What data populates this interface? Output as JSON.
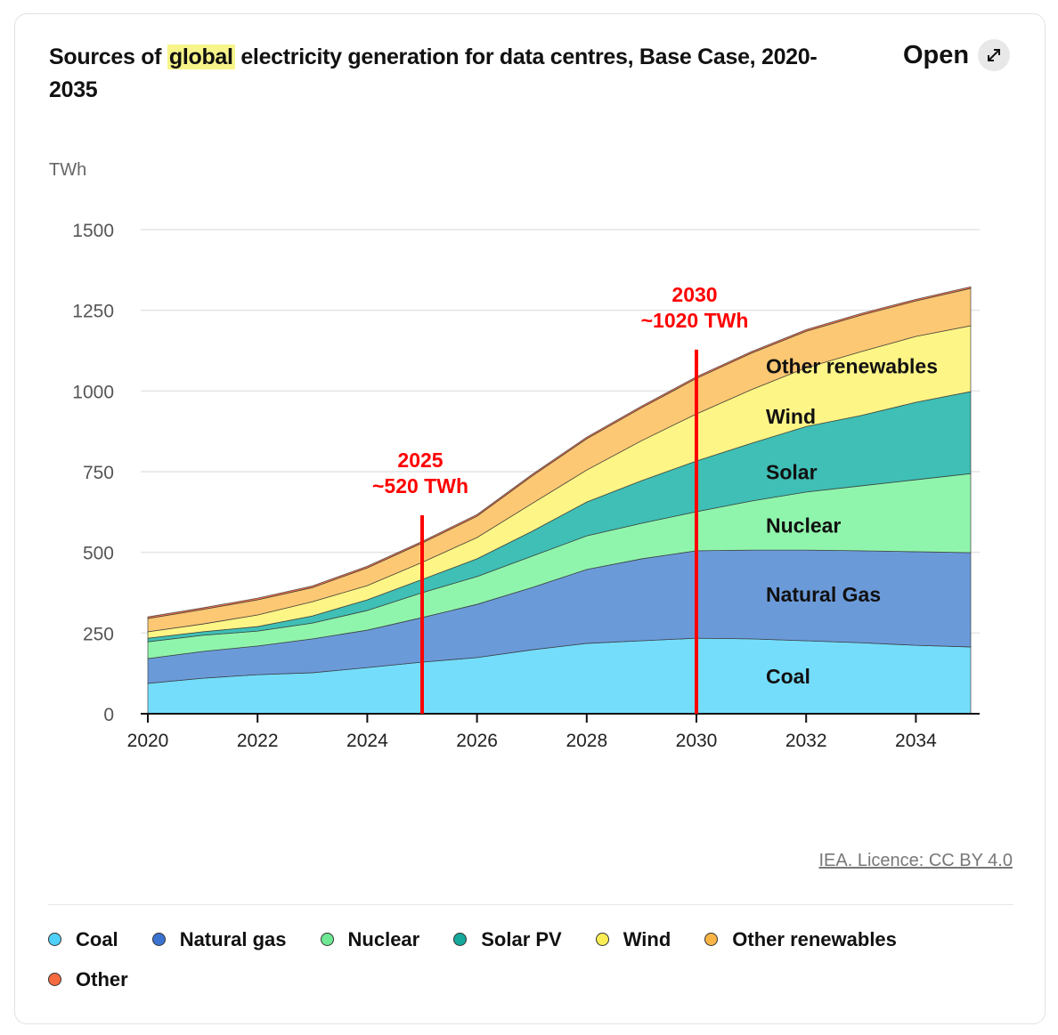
{
  "header": {
    "title_pre": "Sources of ",
    "title_highlight": "global",
    "title_post": " electricity generation for data centres, Base Case, 2020-2035",
    "open_label": "Open",
    "open_icon": "expand-arrows-icon"
  },
  "source": "IEA. Licence: CC BY 4.0",
  "chart_data": {
    "type": "area",
    "stacked": true,
    "title": "Sources of global electricity generation for data centres, Base Case, 2020-2035",
    "ylabel": "TWh",
    "xlabel": "",
    "ylim": [
      0,
      1500
    ],
    "yticks": [
      0,
      250,
      500,
      750,
      1000,
      1250,
      1500
    ],
    "xlim": [
      2020,
      2035
    ],
    "xticks": [
      2020,
      2022,
      2024,
      2026,
      2028,
      2030,
      2032,
      2034
    ],
    "grid": true,
    "x": [
      2020,
      2021,
      2022,
      2023,
      2024,
      2025,
      2026,
      2027,
      2028,
      2029,
      2030,
      2031,
      2032,
      2033,
      2034,
      2035
    ],
    "series": [
      {
        "name": "Coal",
        "label": "Coal",
        "color": "#75ddfc",
        "legend_color": "#4fd0fb",
        "values": [
          94,
          110,
          121,
          127,
          143,
          160,
          174,
          198,
          218,
          226,
          234,
          232,
          226,
          220,
          212,
          207
        ]
      },
      {
        "name": "Natural gas",
        "label": "Natural Gas",
        "color": "#6b9ad9",
        "legend_color": "#3b73d1",
        "values": [
          77,
          83,
          89,
          105,
          116,
          138,
          165,
          193,
          229,
          254,
          271,
          275,
          281,
          285,
          290,
          292
        ]
      },
      {
        "name": "Nuclear",
        "label": "Nuclear",
        "color": "#90f5ac",
        "legend_color": "#6ee892",
        "values": [
          52,
          50,
          46,
          49,
          61,
          77,
          86,
          97,
          104,
          110,
          121,
          152,
          180,
          201,
          223,
          245
        ]
      },
      {
        "name": "Solar PV",
        "label": "Solar",
        "color": "#3fbfb5",
        "legend_color": "#17a89c",
        "values": [
          11,
          11,
          14,
          22,
          33,
          41,
          55,
          77,
          105,
          132,
          157,
          179,
          203,
          218,
          240,
          254
        ]
      },
      {
        "name": "Wind",
        "label": "Wind",
        "color": "#fdf586",
        "legend_color": "#fbee55",
        "values": [
          20,
          24,
          36,
          44,
          44,
          53,
          66,
          86,
          99,
          124,
          146,
          166,
          182,
          198,
          204,
          204
        ]
      },
      {
        "name": "Other renewables",
        "label": "Other renewables",
        "color": "#fdc873",
        "legend_color": "#f9b446",
        "values": [
          41,
          45,
          47,
          44,
          55,
          60,
          66,
          85,
          97,
          102,
          110,
          113,
          113,
          113,
          110,
          116
        ]
      },
      {
        "name": "Other",
        "label": "",
        "color": "#f5784f",
        "legend_color": "#f56a3f",
        "values": [
          5,
          5,
          5,
          5,
          5,
          5,
          5,
          5,
          5,
          5,
          5,
          5,
          5,
          5,
          5,
          5
        ]
      }
    ],
    "annotations": [
      {
        "x": 2025,
        "line_top": 615,
        "year": "2025",
        "value": "~520 TWh",
        "color": "#ff0000"
      },
      {
        "x": 2030,
        "line_top": 1128,
        "year": "2030",
        "value": "~1020 TWh",
        "color": "#ff0000"
      }
    ]
  }
}
